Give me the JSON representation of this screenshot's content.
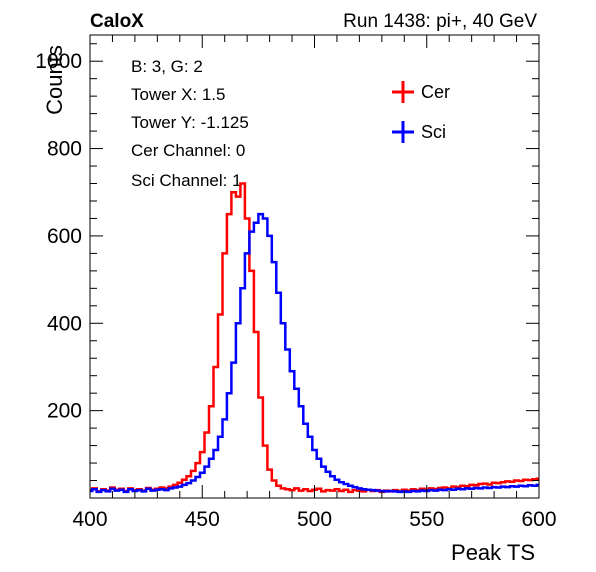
{
  "header": {
    "brand": "CaloX",
    "run_info": "Run 1438: pi+, 40 GeV"
  },
  "info_box": [
    "B: 3, G: 2",
    "Tower X: 1.5",
    "Tower Y: -1.125",
    "Cer Channel: 0",
    "Sci Channel: 1"
  ],
  "chart_data": {
    "type": "line",
    "xlabel": "Peak TS",
    "ylabel": "Counts",
    "xlim": [
      400,
      600
    ],
    "ylim": [
      0,
      1060
    ],
    "x_ticks": [
      400,
      450,
      500,
      550,
      600
    ],
    "y_ticks": [
      200,
      400,
      600,
      800,
      1000
    ],
    "grid": false,
    "legend_position": "top-right",
    "x": [
      400,
      402,
      404,
      406,
      408,
      410,
      412,
      414,
      416,
      418,
      420,
      422,
      424,
      426,
      428,
      430,
      432,
      434,
      436,
      438,
      440,
      442,
      444,
      446,
      448,
      450,
      452,
      454,
      456,
      458,
      460,
      462,
      464,
      466,
      468,
      470,
      472,
      474,
      476,
      478,
      480,
      482,
      484,
      486,
      488,
      490,
      492,
      494,
      496,
      498,
      500,
      502,
      504,
      506,
      508,
      510,
      512,
      514,
      516,
      518,
      520,
      522,
      524,
      526,
      528,
      530,
      532,
      534,
      536,
      538,
      540,
      542,
      544,
      546,
      548,
      550,
      552,
      554,
      556,
      558,
      560,
      562,
      564,
      566,
      568,
      570,
      572,
      574,
      576,
      578,
      580,
      582,
      584,
      586,
      588,
      590,
      592,
      594,
      596,
      598,
      600
    ],
    "series": [
      {
        "name": "Cer",
        "color": "#ff0000",
        "values": [
          18,
          22,
          15,
          20,
          17,
          24,
          19,
          21,
          16,
          22,
          18,
          20,
          17,
          23,
          19,
          21,
          24,
          22,
          26,
          30,
          35,
          42,
          50,
          62,
          80,
          105,
          150,
          210,
          300,
          420,
          560,
          650,
          700,
          690,
          720,
          640,
          520,
          380,
          230,
          120,
          65,
          40,
          28,
          22,
          20,
          18,
          22,
          17,
          20,
          16,
          19,
          21,
          15,
          18,
          17,
          20,
          16,
          19,
          14,
          18,
          17,
          15,
          19,
          16,
          18,
          14,
          17,
          15,
          18,
          16,
          19,
          17,
          20,
          18,
          21,
          19,
          22,
          20,
          23,
          24,
          22,
          26,
          25,
          28,
          27,
          30,
          29,
          32,
          33,
          31,
          35,
          34,
          36,
          38,
          37,
          40,
          39,
          42,
          41,
          43,
          44
        ]
      },
      {
        "name": "Sci",
        "color": "#0000ff",
        "values": [
          16,
          20,
          14,
          18,
          15,
          21,
          17,
          19,
          14,
          20,
          16,
          18,
          15,
          21,
          17,
          19,
          20,
          18,
          22,
          24,
          26,
          30,
          34,
          40,
          48,
          58,
          72,
          90,
          110,
          140,
          180,
          240,
          310,
          400,
          480,
          560,
          610,
          630,
          650,
          640,
          600,
          540,
          470,
          400,
          340,
          290,
          250,
          210,
          170,
          140,
          110,
          90,
          72,
          60,
          50,
          42,
          36,
          32,
          28,
          25,
          22,
          20,
          19,
          18,
          17,
          16,
          15,
          16,
          15,
          14,
          15,
          14,
          16,
          15,
          17,
          16,
          18,
          17,
          19,
          18,
          20,
          19,
          21,
          20,
          22,
          21,
          23,
          22,
          24,
          23,
          25,
          24,
          26,
          25,
          27,
          26,
          28,
          27,
          29,
          28,
          30
        ]
      }
    ]
  }
}
